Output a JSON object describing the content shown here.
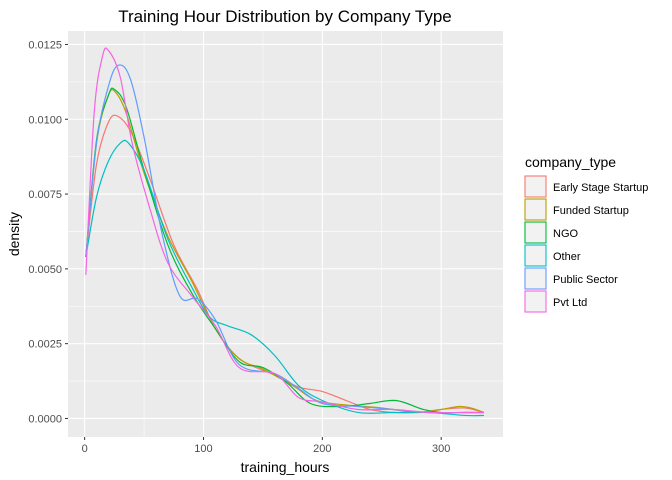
{
  "chart_data": {
    "type": "line",
    "title": "Training Hour Distribution by Company Type",
    "xlabel": "training_hours",
    "ylabel": "density",
    "xlim": [
      -14,
      352
    ],
    "ylim": [
      -0.00062,
      0.01295
    ],
    "x_ticks": [
      0,
      100,
      200,
      300
    ],
    "x_tick_labels": [
      "0",
      "100",
      "200",
      "300"
    ],
    "y_ticks": [
      0,
      0.0025,
      0.005,
      0.0075,
      0.01,
      0.0125
    ],
    "y_tick_labels": [
      "0.0000",
      "0.0025",
      "0.0050",
      "0.0075",
      "0.0100",
      "0.0125"
    ],
    "grid": true,
    "background": "#EBEBEB",
    "legend": {
      "title": "company_type",
      "position": "right"
    },
    "series": [
      {
        "name": "Early Stage Startup",
        "color": "#F8766D",
        "x": [
          1,
          10,
          20,
          28,
          40,
          55,
          75,
          95,
          110,
          130,
          160,
          180,
          200,
          220,
          240,
          260,
          280,
          300,
          320,
          336
        ],
        "values": [
          0.0054,
          0.0085,
          0.0099,
          0.0101,
          0.0095,
          0.008,
          0.0058,
          0.0043,
          0.003,
          0.002,
          0.00145,
          0.00105,
          0.0009,
          0.0006,
          0.0003,
          0.0002,
          0.0002,
          0.0003,
          0.00035,
          0.0002
        ]
      },
      {
        "name": "Funded Startup",
        "color": "#B79F00",
        "x": [
          1,
          10,
          20,
          26,
          35,
          50,
          70,
          90,
          110,
          130,
          150,
          175,
          195,
          220,
          250,
          280,
          300,
          315,
          325,
          336
        ],
        "values": [
          0.0054,
          0.0092,
          0.0108,
          0.0109,
          0.0102,
          0.0082,
          0.0061,
          0.0046,
          0.003,
          0.002,
          0.00165,
          0.0011,
          0.0006,
          0.00045,
          0.00035,
          0.0002,
          0.0003,
          0.0004,
          0.00035,
          0.0002
        ]
      },
      {
        "name": "NGO",
        "color": "#00BA38",
        "x": [
          1,
          10,
          20,
          25,
          35,
          50,
          70,
          90,
          110,
          130,
          150,
          170,
          190,
          215,
          240,
          262,
          285,
          300,
          320,
          336
        ],
        "values": [
          0.0054,
          0.0093,
          0.0108,
          0.011,
          0.0104,
          0.0083,
          0.0058,
          0.0042,
          0.003,
          0.0019,
          0.0017,
          0.0012,
          0.0005,
          0.0004,
          0.0005,
          0.0006,
          0.0003,
          0.0002,
          0.0002,
          0.0002
        ]
      },
      {
        "name": "Other",
        "color": "#00BFC4",
        "x": [
          1,
          10,
          20,
          30,
          37,
          50,
          70,
          90,
          105,
          120,
          140,
          160,
          180,
          200,
          230,
          260,
          290,
          320,
          336
        ],
        "values": [
          0.0054,
          0.0074,
          0.0086,
          0.0092,
          0.0092,
          0.0083,
          0.006,
          0.0044,
          0.0034,
          0.0031,
          0.0028,
          0.0021,
          0.0011,
          0.0006,
          0.0002,
          0.0002,
          0.0002,
          0.0001,
          0.0001
        ]
      },
      {
        "name": "Public Sector",
        "color": "#619CFF",
        "x": [
          1,
          10,
          20,
          28,
          38,
          50,
          65,
          80,
          95,
          110,
          130,
          160,
          180,
          200,
          230,
          260,
          290,
          320,
          336
        ],
        "values": [
          0.0054,
          0.0092,
          0.0111,
          0.0118,
          0.0114,
          0.0094,
          0.0062,
          0.0041,
          0.004,
          0.0033,
          0.0018,
          0.0015,
          0.001,
          0.0005,
          0.0004,
          0.0003,
          0.0002,
          0.0002,
          0.0002
        ]
      },
      {
        "name": "Pvt Ltd",
        "color": "#F564E3",
        "x": [
          1,
          8,
          15,
          20,
          30,
          40,
          55,
          70,
          90,
          110,
          130,
          160,
          180,
          200,
          230,
          260,
          290,
          320,
          336
        ],
        "values": [
          0.0048,
          0.0102,
          0.0121,
          0.0123,
          0.0114,
          0.0092,
          0.007,
          0.0052,
          0.0041,
          0.0031,
          0.0017,
          0.0015,
          0.0007,
          0.00055,
          0.0003,
          0.0003,
          0.0002,
          0.0002,
          0.0002
        ]
      }
    ]
  }
}
